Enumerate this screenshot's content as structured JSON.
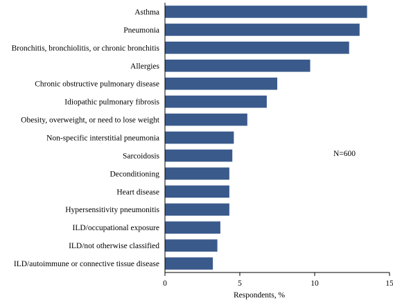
{
  "chart_data": {
    "type": "bar",
    "orientation": "horizontal",
    "categories": [
      "Asthma",
      "Pneumonia",
      "Bronchitis, bronchiolitis, or chronic bronchitis",
      "Allergies",
      "Chronic obstructive pulmonary disease",
      "Idiopathic pulmonary fibrosis",
      "Obesity, overweight, or need to lose weight",
      "Non-specific interstitial pneumonia",
      "Sarcoidosis",
      "Deconditioning",
      "Heart disease",
      "Hypersensitivity pneumonitis",
      "ILD/occupational exposure",
      "ILD/not otherwise classified",
      "ILD/autoimmune or connective tissue disease"
    ],
    "values": [
      13.5,
      13.0,
      12.3,
      9.7,
      7.5,
      6.8,
      5.5,
      4.6,
      4.5,
      4.3,
      4.3,
      4.3,
      3.7,
      3.5,
      3.2
    ],
    "title": "",
    "xlabel": "Respondents, %",
    "ylabel": "",
    "xlim": [
      0,
      15
    ],
    "xticks": [
      0,
      5,
      10,
      15
    ],
    "grid": false,
    "annotation": "N=600",
    "bar_color": "#3a5a8c"
  }
}
